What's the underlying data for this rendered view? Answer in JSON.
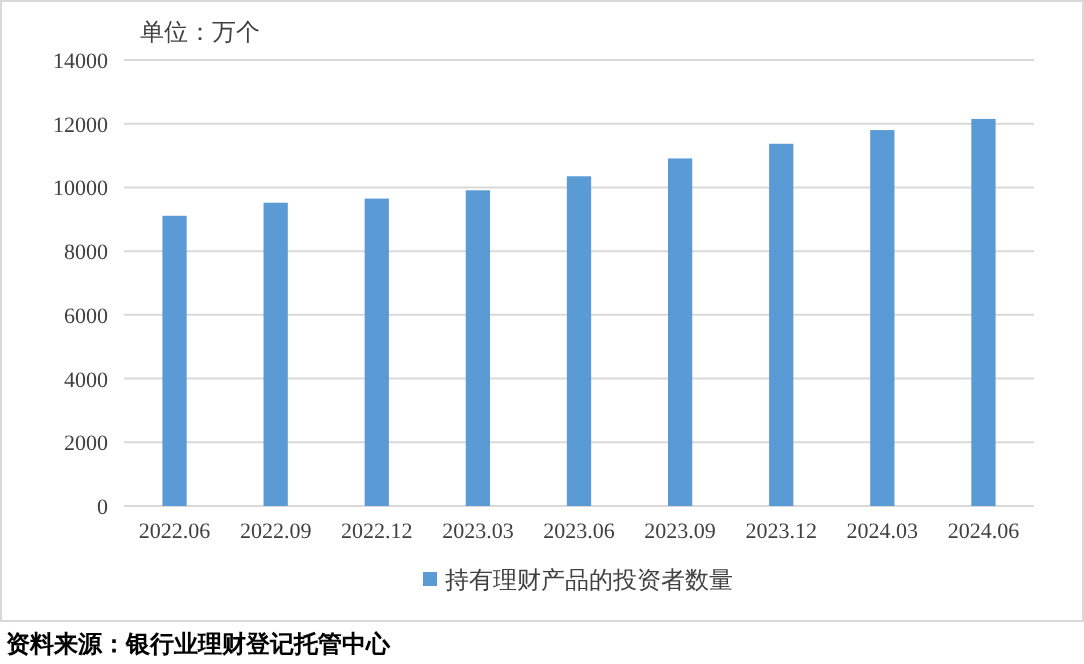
{
  "chart_data": {
    "type": "bar",
    "ylabel": "单位：万个",
    "categories": [
      "2022.06",
      "2022.09",
      "2022.12",
      "2023.03",
      "2023.06",
      "2023.09",
      "2023.12",
      "2024.03",
      "2024.06"
    ],
    "series": [
      {
        "name": "持有理财产品的投资者数量",
        "color": "#5b9bd5",
        "values": [
          9110,
          9520,
          9650,
          9910,
          10350,
          10910,
          11370,
          11800,
          12150
        ]
      }
    ],
    "ylim": [
      0,
      14000
    ],
    "yticks": [
      0,
      2000,
      4000,
      6000,
      8000,
      10000,
      12000,
      14000
    ],
    "grid": "y",
    "legend": "bottom",
    "annotations": [
      "资料来源：银行业理财登记托管中心"
    ]
  }
}
